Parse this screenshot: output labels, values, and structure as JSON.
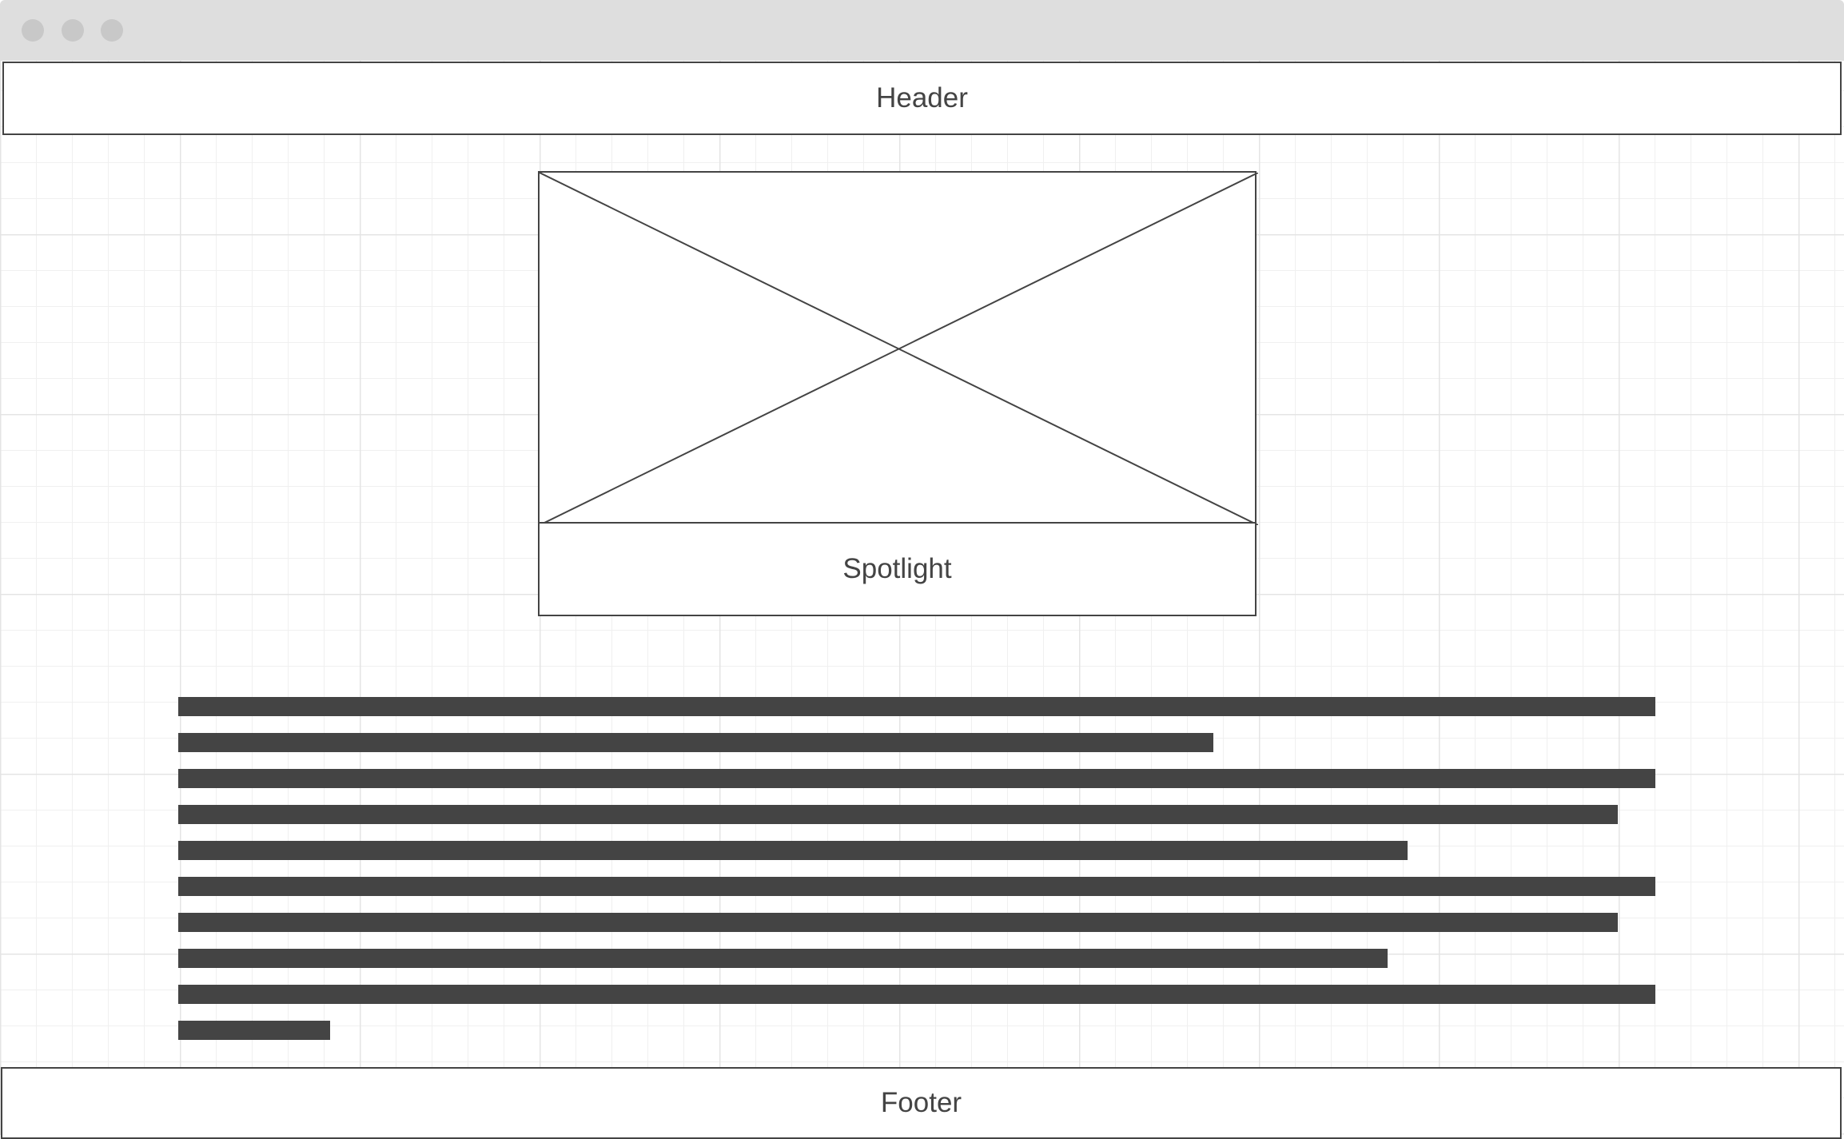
{
  "window": {
    "controls": [
      "close-dot",
      "minimize-dot",
      "maximize-dot"
    ]
  },
  "header": {
    "label": "Header"
  },
  "spotlight": {
    "image": "image-placeholder",
    "caption": "Spotlight"
  },
  "body_text": {
    "lines": 10,
    "line_fill": [
      1.0,
      0.7,
      1.0,
      0.975,
      0.833,
      1.0,
      0.975,
      0.819,
      1.0,
      0.103
    ]
  },
  "footer": {
    "label": "Footer"
  }
}
